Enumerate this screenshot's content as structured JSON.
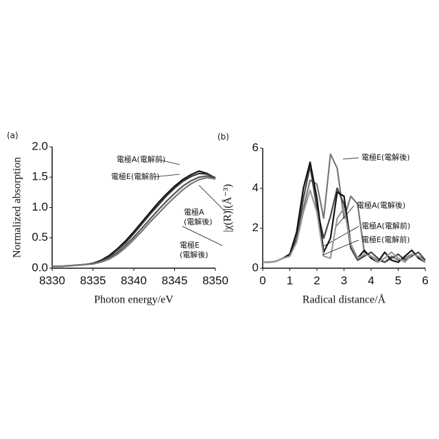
{
  "chart_data": [
    {
      "type": "line",
      "label": "(a)",
      "xlabel": "Photon energy/eV",
      "ylabel": "Normalized absorption",
      "x": [
        8330,
        8331,
        8332,
        8333,
        8334,
        8335,
        8336,
        8337,
        8338,
        8339,
        8340,
        8341,
        8342,
        8343,
        8344,
        8345,
        8346,
        8347,
        8348,
        8349,
        8350
      ],
      "series": [
        {
          "name": "電極A(電解前)",
          "color": "#111111",
          "values": [
            0.03,
            0.03,
            0.04,
            0.05,
            0.06,
            0.08,
            0.13,
            0.21,
            0.32,
            0.45,
            0.6,
            0.76,
            0.92,
            1.08,
            1.22,
            1.35,
            1.46,
            1.54,
            1.6,
            1.56,
            1.48
          ]
        },
        {
          "name": "電極E(電解前)",
          "color": "#333333",
          "values": [
            0.03,
            0.03,
            0.04,
            0.05,
            0.06,
            0.08,
            0.12,
            0.19,
            0.3,
            0.42,
            0.57,
            0.73,
            0.89,
            1.04,
            1.19,
            1.32,
            1.43,
            1.51,
            1.56,
            1.55,
            1.49
          ]
        },
        {
          "name": "電極A\n(電解後)",
          "color": "#555555",
          "values": [
            0.03,
            0.03,
            0.04,
            0.05,
            0.06,
            0.07,
            0.11,
            0.17,
            0.26,
            0.38,
            0.51,
            0.66,
            0.81,
            0.96,
            1.1,
            1.23,
            1.35,
            1.44,
            1.5,
            1.52,
            1.48
          ]
        },
        {
          "name": "電極E\n(電解後)",
          "color": "#777777",
          "values": [
            0.03,
            0.03,
            0.04,
            0.05,
            0.06,
            0.07,
            0.1,
            0.15,
            0.23,
            0.34,
            0.47,
            0.61,
            0.76,
            0.9,
            1.04,
            1.17,
            1.29,
            1.39,
            1.46,
            1.49,
            1.47
          ]
        }
      ],
      "xlim": [
        8330,
        8350
      ],
      "xticks": [
        8330,
        8335,
        8340,
        8345,
        8350
      ],
      "ylim": [
        0,
        2
      ],
      "yticks": [
        {
          "value": 0,
          "label": "0.0"
        },
        0.5,
        {
          "value": 1,
          "label": "1.0"
        },
        1.5,
        {
          "value": 2,
          "label": "2.0"
        }
      ]
    },
    {
      "type": "line",
      "label": "(b)",
      "xlabel": "Radical distance/Å",
      "ylabel": "|χ(R)|(Å⁻³)",
      "x": [
        0,
        0.25,
        0.5,
        0.75,
        1,
        1.25,
        1.5,
        1.75,
        2,
        2.25,
        2.5,
        2.75,
        3,
        3.25,
        3.5,
        3.75,
        4,
        4.25,
        4.5,
        4.75,
        5,
        5.25,
        5.5,
        5.75,
        6
      ],
      "series": [
        {
          "name": "電極E(電解後)",
          "color": "#777777",
          "values": [
            0.3,
            0.3,
            0.35,
            0.5,
            0.7,
            1.5,
            3.0,
            4.4,
            4.2,
            2.5,
            5.7,
            5.0,
            2.5,
            3.6,
            3.2,
            0.8,
            0.6,
            0.4,
            0.3,
            0.6,
            0.4,
            0.5,
            0.7,
            0.6,
            0.4
          ]
        },
        {
          "name": "電極A(電解後)",
          "color": "#444444",
          "values": [
            0.3,
            0.3,
            0.35,
            0.5,
            0.6,
            1.5,
            3.5,
            5.1,
            3.0,
            1.5,
            2.6,
            4.0,
            3.2,
            1.0,
            0.4,
            0.6,
            0.8,
            0.5,
            0.3,
            0.5,
            0.7,
            0.4,
            0.6,
            0.8,
            0.4
          ]
        },
        {
          "name": "電極A(電解前)",
          "color": "#111111",
          "values": [
            0.3,
            0.3,
            0.35,
            0.5,
            0.7,
            1.8,
            4.0,
            5.3,
            3.5,
            0.8,
            1.5,
            3.8,
            3.6,
            1.2,
            0.5,
            0.9,
            0.5,
            0.3,
            0.8,
            0.4,
            0.3,
            0.6,
            0.9,
            0.5,
            0.3
          ]
        },
        {
          "name": "電極E(電解前)",
          "color": "#999999",
          "values": [
            0.3,
            0.3,
            0.35,
            0.5,
            0.6,
            1.3,
            2.8,
            3.9,
            2.8,
            0.6,
            0.5,
            2.5,
            3.0,
            1.2,
            0.5,
            0.7,
            0.6,
            0.3,
            0.5,
            0.8,
            0.5,
            0.3,
            0.7,
            0.6,
            0.3
          ]
        }
      ],
      "xlim": [
        0,
        6
      ],
      "xticks": [
        0,
        1,
        2,
        3,
        4,
        5,
        6
      ],
      "ylim": [
        0,
        6
      ],
      "yticks": [
        0,
        2,
        4,
        6
      ]
    }
  ]
}
